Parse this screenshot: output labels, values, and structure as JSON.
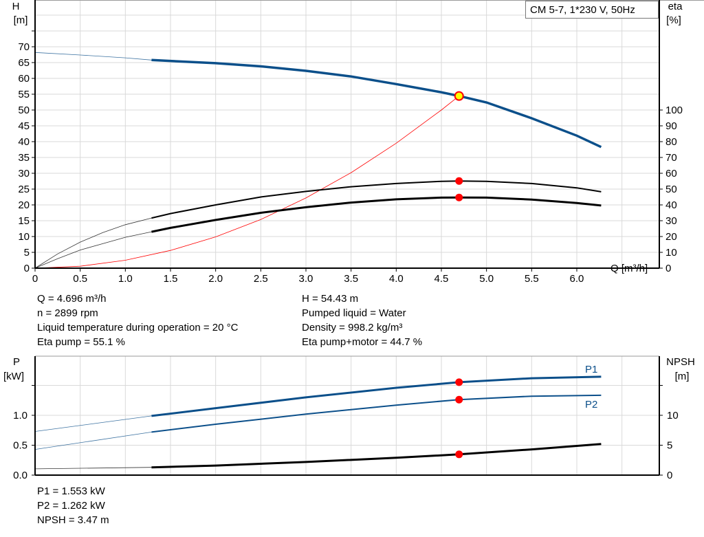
{
  "title_box": "CM 5-7, 1*230 V, 50Hz",
  "colors": {
    "head": "#0b4f8a",
    "power": "#0b4f8a",
    "efficiency": "#000000",
    "npsh": "#000000",
    "system": "#ff0000",
    "op_point": "#ff0000",
    "op_point_head_fill": "#ffff00",
    "grid": "#d9d9d9"
  },
  "info_top_left": [
    "Q = 4.696 m³/h",
    "n = 2899 rpm",
    "Liquid temperature during operation = 20 °C",
    "Eta pump = 55.1 %"
  ],
  "info_top_right": [
    "H = 54.43 m",
    "Pumped liquid = Water",
    "Density = 998.2 kg/m³",
    "Eta pump+motor = 44.7 %"
  ],
  "info_bottom": [
    "P1 = 1.553 kW",
    "P2 = 1.262 kW",
    "NPSH = 3.47 m"
  ],
  "chart_data": [
    {
      "type": "line",
      "xlabel": "Q [m³/h]",
      "ylabel_left": [
        "H",
        "[m]"
      ],
      "ylabel_right": [
        "eta",
        "[%]"
      ],
      "xlim": [
        0,
        6.9
      ],
      "x_ticks": [
        "0",
        "0.5",
        "1.0",
        "1.5",
        "2.0",
        "2.5",
        "3.0",
        "3.5",
        "4.0",
        "4.5",
        "5.0",
        "5.5",
        "6.0"
      ],
      "y_left_ticks": [
        "0",
        "5",
        "10",
        "15",
        "20",
        "25",
        "30",
        "35",
        "40",
        "45",
        "50",
        "55",
        "60",
        "65",
        "70"
      ],
      "y_left_lim": [
        0,
        85
      ],
      "y_right_ticks": [
        "0",
        "10",
        "20",
        "30",
        "40",
        "50",
        "60",
        "70",
        "80",
        "90",
        "100"
      ],
      "grid": true,
      "operating_q": 4.696,
      "series": [
        {
          "key": "head",
          "axis": "left",
          "thick_from": 1.29,
          "x": [
            0,
            0.5,
            1.0,
            1.29,
            2.0,
            2.5,
            3.0,
            3.5,
            4.0,
            4.5,
            4.696,
            5.0,
            5.5,
            6.0,
            6.27
          ],
          "y": [
            68.2,
            67.4,
            66.5,
            65.8,
            64.8,
            63.8,
            62.4,
            60.6,
            58.2,
            55.6,
            54.43,
            52.4,
            47.4,
            41.9,
            38.3
          ],
          "op": 54.43
        },
        {
          "key": "eta_pump",
          "axis": "right",
          "thick_from": 1.29,
          "x": [
            0,
            0.25,
            0.5,
            0.75,
            1.0,
            1.29,
            1.5,
            2.0,
            2.5,
            3.0,
            3.5,
            4.0,
            4.5,
            4.696,
            5.0,
            5.5,
            6.0,
            6.27
          ],
          "y": [
            0,
            9,
            16.5,
            22.5,
            27.5,
            31.7,
            34.5,
            40,
            45,
            48.5,
            51.5,
            53.5,
            54.9,
            55.1,
            54.9,
            53.5,
            50.8,
            48.3
          ],
          "op": 55.1
        },
        {
          "key": "eta_pump_motor",
          "axis": "right",
          "thick_from": 1.29,
          "x": [
            0,
            0.25,
            0.5,
            0.75,
            1.0,
            1.29,
            1.5,
            2.0,
            2.5,
            3.0,
            3.5,
            4.0,
            4.5,
            4.696,
            5.0,
            5.5,
            6.0,
            6.27
          ],
          "y": [
            0,
            6,
            11.5,
            15.5,
            19.5,
            23,
            25.5,
            30.5,
            35,
            38.5,
            41.5,
            43.5,
            44.6,
            44.7,
            44.6,
            43.4,
            41.2,
            39.6
          ],
          "op": 44.7
        },
        {
          "key": "system",
          "axis": "left",
          "thick_from": null,
          "x": [
            0,
            0.5,
            1.0,
            1.5,
            2.0,
            2.5,
            3.0,
            3.5,
            4.0,
            4.5,
            4.696
          ],
          "y": [
            0,
            0.6,
            2.5,
            5.6,
            9.9,
            15.4,
            22.2,
            30.2,
            39.5,
            50.0,
            54.43
          ],
          "op": null
        }
      ]
    },
    {
      "type": "line",
      "ylabel_left": [
        "P",
        "[kW]"
      ],
      "ylabel_right": [
        "NPSH",
        "[m]"
      ],
      "xlim": [
        0,
        6.9
      ],
      "y_left_ticks": [
        "0.0",
        "0.5",
        "1.0"
      ],
      "y_left_lim": [
        0,
        2.0
      ],
      "y_right_ticks": [
        "0",
        "5",
        "10"
      ],
      "y_right_lim": [
        0,
        20
      ],
      "grid": true,
      "series": [
        {
          "key": "p1",
          "name": "P1",
          "axis": "left",
          "thick_from": 1.29,
          "x": [
            0,
            1.29,
            2.0,
            3.0,
            4.0,
            4.696,
            5.5,
            6.27
          ],
          "y": [
            0.73,
            0.99,
            1.12,
            1.3,
            1.46,
            1.553,
            1.62,
            1.645
          ],
          "op": 1.553
        },
        {
          "key": "p2",
          "name": "P2",
          "axis": "left",
          "thick_from": 1.29,
          "x": [
            0,
            1.29,
            2.0,
            3.0,
            4.0,
            4.696,
            5.5,
            6.27
          ],
          "y": [
            0.43,
            0.72,
            0.85,
            1.02,
            1.17,
            1.262,
            1.32,
            1.335
          ],
          "op": 1.262
        },
        {
          "key": "npsh",
          "axis": "right",
          "thick_from": 1.29,
          "x": [
            0,
            1.29,
            2.0,
            3.0,
            4.0,
            4.696,
            5.5,
            6.27
          ],
          "y": [
            1.05,
            1.3,
            1.6,
            2.2,
            2.9,
            3.47,
            4.3,
            5.2
          ],
          "op": 3.47
        }
      ]
    }
  ]
}
